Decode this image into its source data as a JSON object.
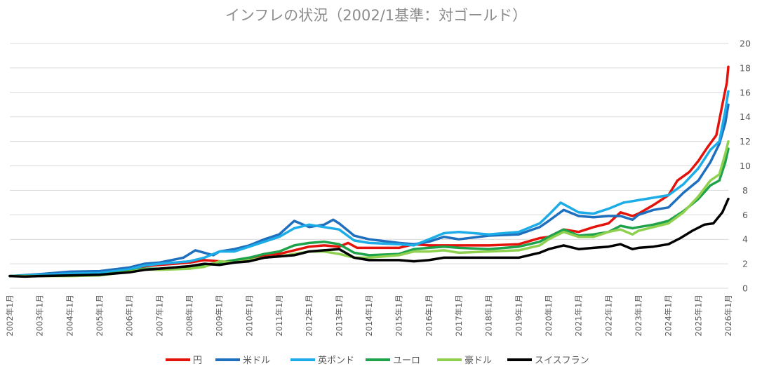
{
  "chart_data": {
    "type": "line",
    "title": "インフレの状況（2002/1基準：対ゴールド）",
    "xlabel": "",
    "ylabel": "",
    "ylim": [
      0,
      20
    ],
    "yticks": [
      "0",
      "2",
      "4",
      "6",
      "8",
      "10",
      "12",
      "14",
      "16",
      "18",
      "20"
    ],
    "grid": true,
    "y_axis_side": "right",
    "legend_position": "bottom",
    "x_range": [
      2002.0,
      2026.0
    ],
    "x_tick_labels": [
      "2002年1月",
      "2003年1月",
      "2004年1月",
      "2005年1月",
      "2006年1月",
      "2007年1月",
      "2008年1月",
      "2009年1月",
      "2010年1月",
      "2011年1月",
      "2012年1月",
      "2013年1月",
      "2014年1月",
      "2015年1月",
      "2016年1月",
      "2017年1月",
      "2018年1月",
      "2019年1月",
      "2020年1月",
      "2021年1月",
      "2022年1月",
      "2023年1月",
      "2024年1月",
      "2025年1月",
      "2026年1月"
    ],
    "series": [
      {
        "name": "円",
        "color": "#e3120b",
        "points": [
          [
            2002,
            1
          ],
          [
            2003,
            1.1
          ],
          [
            2004,
            1.15
          ],
          [
            2005,
            1.15
          ],
          [
            2006,
            1.5
          ],
          [
            2006.5,
            1.8
          ],
          [
            2007,
            1.9
          ],
          [
            2008,
            2.1
          ],
          [
            2008.5,
            2.3
          ],
          [
            2009,
            2.2
          ],
          [
            2009.5,
            2.1
          ],
          [
            2010,
            2.4
          ],
          [
            2010.5,
            2.6
          ],
          [
            2011,
            2.8
          ],
          [
            2011.5,
            3.1
          ],
          [
            2012,
            3.4
          ],
          [
            2012.5,
            3.5
          ],
          [
            2013,
            3.4
          ],
          [
            2013.3,
            3.7
          ],
          [
            2013.6,
            3.3
          ],
          [
            2014,
            3.3
          ],
          [
            2015,
            3.3
          ],
          [
            2015.5,
            3.6
          ],
          [
            2016,
            3.5
          ],
          [
            2017,
            3.5
          ],
          [
            2018,
            3.5
          ],
          [
            2019,
            3.6
          ],
          [
            2019.7,
            4.1
          ],
          [
            2020,
            4.2
          ],
          [
            2020.5,
            4.8
          ],
          [
            2021,
            4.6
          ],
          [
            2021.5,
            5.0
          ],
          [
            2022,
            5.3
          ],
          [
            2022.4,
            6.2
          ],
          [
            2022.8,
            5.9
          ],
          [
            2023,
            6.1
          ],
          [
            2023.5,
            6.8
          ],
          [
            2024,
            7.6
          ],
          [
            2024.3,
            8.8
          ],
          [
            2024.7,
            9.5
          ],
          [
            2025,
            10.4
          ],
          [
            2025.3,
            11.5
          ],
          [
            2025.6,
            12.5
          ],
          [
            2025.8,
            15.0
          ],
          [
            2025.95,
            16.8
          ],
          [
            2026,
            18.1
          ]
        ]
      },
      {
        "name": "米ドル",
        "color": "#1f6fbf",
        "points": [
          [
            2002,
            1
          ],
          [
            2003,
            1.15
          ],
          [
            2004,
            1.35
          ],
          [
            2005,
            1.4
          ],
          [
            2006,
            1.7
          ],
          [
            2006.5,
            2.0
          ],
          [
            2007,
            2.1
          ],
          [
            2007.8,
            2.5
          ],
          [
            2008.2,
            3.1
          ],
          [
            2008.8,
            2.7
          ],
          [
            2009,
            3.0
          ],
          [
            2009.5,
            3.2
          ],
          [
            2010,
            3.5
          ],
          [
            2010.5,
            4.0
          ],
          [
            2011,
            4.4
          ],
          [
            2011.5,
            5.5
          ],
          [
            2012,
            5.0
          ],
          [
            2012.5,
            5.2
          ],
          [
            2012.8,
            5.6
          ],
          [
            2013,
            5.3
          ],
          [
            2013.5,
            4.3
          ],
          [
            2014,
            4.0
          ],
          [
            2015,
            3.7
          ],
          [
            2015.5,
            3.6
          ],
          [
            2016,
            3.8
          ],
          [
            2016.5,
            4.2
          ],
          [
            2017,
            4.0
          ],
          [
            2018,
            4.3
          ],
          [
            2019,
            4.4
          ],
          [
            2019.7,
            5.0
          ],
          [
            2020,
            5.5
          ],
          [
            2020.5,
            6.4
          ],
          [
            2021,
            5.9
          ],
          [
            2021.5,
            5.8
          ],
          [
            2022,
            5.9
          ],
          [
            2022.4,
            5.9
          ],
          [
            2022.8,
            5.6
          ],
          [
            2023,
            6.0
          ],
          [
            2023.5,
            6.4
          ],
          [
            2024,
            6.6
          ],
          [
            2024.5,
            7.8
          ],
          [
            2025,
            8.8
          ],
          [
            2025.4,
            10.3
          ],
          [
            2025.7,
            11.8
          ],
          [
            2025.9,
            13.5
          ],
          [
            2026,
            15.0
          ]
        ]
      },
      {
        "name": "英ポンド",
        "color": "#1cace8",
        "points": [
          [
            2002,
            1
          ],
          [
            2003,
            1.1
          ],
          [
            2004,
            1.2
          ],
          [
            2005,
            1.25
          ],
          [
            2006,
            1.55
          ],
          [
            2006.5,
            1.85
          ],
          [
            2007,
            2.0
          ],
          [
            2008,
            2.2
          ],
          [
            2008.5,
            2.5
          ],
          [
            2009,
            3.0
          ],
          [
            2009.5,
            3.0
          ],
          [
            2010,
            3.4
          ],
          [
            2010.5,
            3.8
          ],
          [
            2011,
            4.2
          ],
          [
            2011.5,
            4.9
          ],
          [
            2012,
            5.2
          ],
          [
            2012.5,
            5.0
          ],
          [
            2013,
            4.8
          ],
          [
            2013.5,
            3.9
          ],
          [
            2014,
            3.7
          ],
          [
            2015,
            3.6
          ],
          [
            2015.5,
            3.5
          ],
          [
            2016,
            4.0
          ],
          [
            2016.5,
            4.5
          ],
          [
            2017,
            4.6
          ],
          [
            2018,
            4.4
          ],
          [
            2019,
            4.6
          ],
          [
            2019.7,
            5.3
          ],
          [
            2020,
            6.0
          ],
          [
            2020.4,
            7.0
          ],
          [
            2021,
            6.2
          ],
          [
            2021.5,
            6.1
          ],
          [
            2022,
            6.5
          ],
          [
            2022.5,
            7.0
          ],
          [
            2023,
            7.2
          ],
          [
            2023.5,
            7.4
          ],
          [
            2024,
            7.6
          ],
          [
            2024.5,
            8.5
          ],
          [
            2025,
            9.8
          ],
          [
            2025.4,
            11.3
          ],
          [
            2025.7,
            12.0
          ],
          [
            2025.9,
            14.5
          ],
          [
            2026,
            16.1
          ]
        ]
      },
      {
        "name": "ユーロ",
        "color": "#1ea24a",
        "points": [
          [
            2002,
            1
          ],
          [
            2003,
            1.0
          ],
          [
            2004,
            1.05
          ],
          [
            2005,
            1.1
          ],
          [
            2006,
            1.4
          ],
          [
            2006.5,
            1.6
          ],
          [
            2007,
            1.6
          ],
          [
            2008,
            1.8
          ],
          [
            2008.5,
            1.9
          ],
          [
            2009,
            2.1
          ],
          [
            2009.5,
            2.3
          ],
          [
            2010,
            2.5
          ],
          [
            2010.5,
            2.8
          ],
          [
            2011,
            3.0
          ],
          [
            2011.5,
            3.5
          ],
          [
            2012,
            3.7
          ],
          [
            2012.5,
            3.8
          ],
          [
            2013,
            3.6
          ],
          [
            2013.5,
            2.9
          ],
          [
            2014,
            2.7
          ],
          [
            2015,
            2.8
          ],
          [
            2015.5,
            3.2
          ],
          [
            2016,
            3.3
          ],
          [
            2016.5,
            3.4
          ],
          [
            2017,
            3.3
          ],
          [
            2018,
            3.2
          ],
          [
            2019,
            3.4
          ],
          [
            2019.7,
            3.8
          ],
          [
            2020,
            4.2
          ],
          [
            2020.5,
            4.8
          ],
          [
            2021,
            4.3
          ],
          [
            2021.5,
            4.4
          ],
          [
            2022,
            4.6
          ],
          [
            2022.4,
            5.1
          ],
          [
            2022.8,
            4.9
          ],
          [
            2023,
            5.0
          ],
          [
            2023.5,
            5.2
          ],
          [
            2024,
            5.5
          ],
          [
            2024.5,
            6.3
          ],
          [
            2025,
            7.3
          ],
          [
            2025.4,
            8.4
          ],
          [
            2025.7,
            8.8
          ],
          [
            2025.9,
            10.3
          ],
          [
            2026,
            11.4
          ]
        ]
      },
      {
        "name": "豪ドル",
        "color": "#8fd14f",
        "points": [
          [
            2002,
            1
          ],
          [
            2003,
            1.0
          ],
          [
            2004,
            1.0
          ],
          [
            2005,
            1.05
          ],
          [
            2006,
            1.35
          ],
          [
            2006.5,
            1.55
          ],
          [
            2007,
            1.5
          ],
          [
            2008,
            1.6
          ],
          [
            2008.5,
            1.75
          ],
          [
            2009,
            2.2
          ],
          [
            2009.5,
            2.1
          ],
          [
            2010,
            2.3
          ],
          [
            2010.5,
            2.5
          ],
          [
            2011,
            2.6
          ],
          [
            2011.5,
            2.8
          ],
          [
            2012,
            3.0
          ],
          [
            2012.5,
            3.0
          ],
          [
            2013,
            2.8
          ],
          [
            2013.5,
            2.5
          ],
          [
            2014,
            2.5
          ],
          [
            2015,
            2.7
          ],
          [
            2015.5,
            3.0
          ],
          [
            2016,
            3.0
          ],
          [
            2016.5,
            3.1
          ],
          [
            2017,
            2.9
          ],
          [
            2018,
            3.0
          ],
          [
            2019,
            3.1
          ],
          [
            2019.7,
            3.5
          ],
          [
            2020,
            4.0
          ],
          [
            2020.5,
            4.6
          ],
          [
            2021,
            4.2
          ],
          [
            2021.5,
            4.2
          ],
          [
            2022,
            4.6
          ],
          [
            2022.4,
            4.8
          ],
          [
            2022.8,
            4.4
          ],
          [
            2023,
            4.7
          ],
          [
            2023.5,
            5.0
          ],
          [
            2024,
            5.3
          ],
          [
            2024.5,
            6.2
          ],
          [
            2025,
            7.5
          ],
          [
            2025.4,
            8.8
          ],
          [
            2025.7,
            9.3
          ],
          [
            2025.9,
            11.0
          ],
          [
            2026,
            12.0
          ]
        ]
      },
      {
        "name": "スイスフラン",
        "color": "#000000",
        "points": [
          [
            2002,
            1
          ],
          [
            2002.5,
            0.95
          ],
          [
            2003,
            1.0
          ],
          [
            2004,
            1.05
          ],
          [
            2005,
            1.1
          ],
          [
            2006,
            1.3
          ],
          [
            2006.5,
            1.5
          ],
          [
            2007,
            1.6
          ],
          [
            2008,
            1.8
          ],
          [
            2008.5,
            2.0
          ],
          [
            2009,
            1.9
          ],
          [
            2009.5,
            2.1
          ],
          [
            2010,
            2.2
          ],
          [
            2010.5,
            2.5
          ],
          [
            2011,
            2.6
          ],
          [
            2011.5,
            2.7
          ],
          [
            2012,
            3.0
          ],
          [
            2012.5,
            3.1
          ],
          [
            2013,
            3.2
          ],
          [
            2013.5,
            2.5
          ],
          [
            2014,
            2.3
          ],
          [
            2015,
            2.3
          ],
          [
            2015.5,
            2.2
          ],
          [
            2016,
            2.3
          ],
          [
            2016.5,
            2.5
          ],
          [
            2017,
            2.5
          ],
          [
            2018,
            2.5
          ],
          [
            2019,
            2.5
          ],
          [
            2019.7,
            2.9
          ],
          [
            2020,
            3.2
          ],
          [
            2020.5,
            3.5
          ],
          [
            2021,
            3.2
          ],
          [
            2021.5,
            3.3
          ],
          [
            2022,
            3.4
          ],
          [
            2022.4,
            3.6
          ],
          [
            2022.8,
            3.2
          ],
          [
            2023,
            3.3
          ],
          [
            2023.5,
            3.4
          ],
          [
            2024,
            3.6
          ],
          [
            2024.4,
            4.1
          ],
          [
            2024.8,
            4.7
          ],
          [
            2025.2,
            5.2
          ],
          [
            2025.5,
            5.3
          ],
          [
            2025.8,
            6.2
          ],
          [
            2026,
            7.3
          ]
        ]
      }
    ]
  }
}
